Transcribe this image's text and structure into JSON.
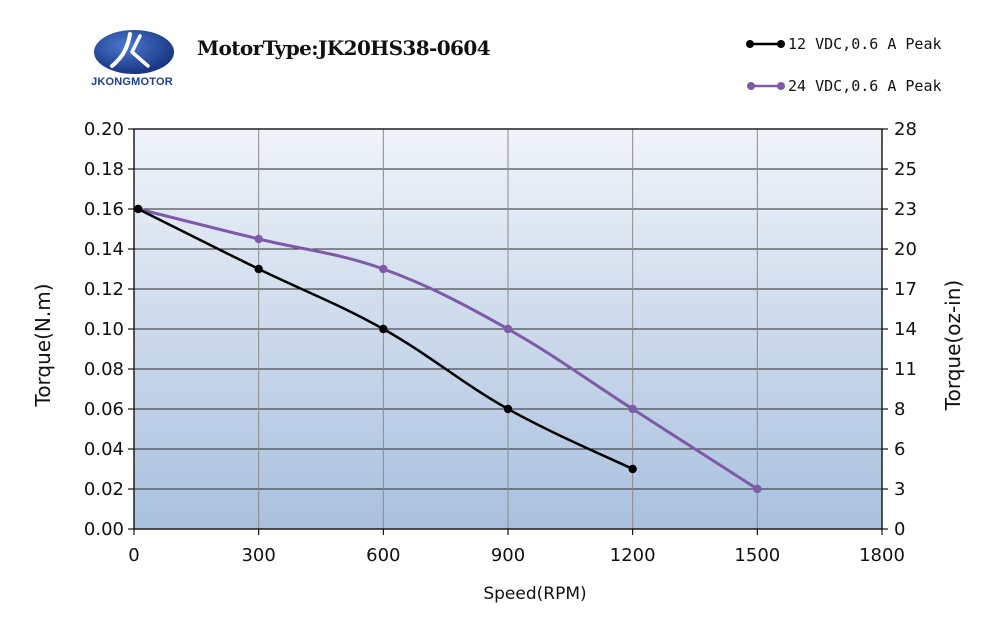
{
  "header": {
    "logo_text": "JKONGMOTOR",
    "motor_title": "MotorType:JK20HS38-0604"
  },
  "colors": {
    "series_12v": "#000000",
    "series_24v": "#7f5aa8",
    "plot_bg_top": "#f0f4f9",
    "plot_bg_bottom": "#a9c0de",
    "logo_blue": "#1d3f8f"
  },
  "chart_data": {
    "type": "line",
    "title": "MotorType:JK20HS38-0604",
    "xlabel": "Speed(RPM)",
    "ylabel": "Torque(N.m)",
    "y2label": "Torque(oz-in)",
    "xlim": [
      0,
      1800
    ],
    "ylim": [
      0,
      0.2
    ],
    "x_ticks": [
      "0",
      "300",
      "600",
      "900",
      "1200",
      "1500",
      "1800"
    ],
    "y_ticks": [
      "0.00",
      "0.02",
      "0.04",
      "0.06",
      "0.08",
      "0.10",
      "0.12",
      "0.14",
      "0.16",
      "0.18",
      "0.20"
    ],
    "y2_ticks": [
      "0",
      "3",
      "6",
      "8",
      "11",
      "14",
      "17",
      "20",
      "23",
      "25",
      "28"
    ],
    "grid": true,
    "legend_position": "top-right",
    "series": [
      {
        "name": "12 VDC,0.6 A Peak",
        "x": [
          10,
          300,
          600,
          900,
          1200
        ],
        "y": [
          0.16,
          0.13,
          0.1,
          0.06,
          0.03
        ]
      },
      {
        "name": "24 VDC,0.6 A Peak",
        "x": [
          10,
          300,
          600,
          900,
          1200,
          1500
        ],
        "y": [
          0.16,
          0.145,
          0.13,
          0.1,
          0.06,
          0.02
        ]
      }
    ]
  }
}
